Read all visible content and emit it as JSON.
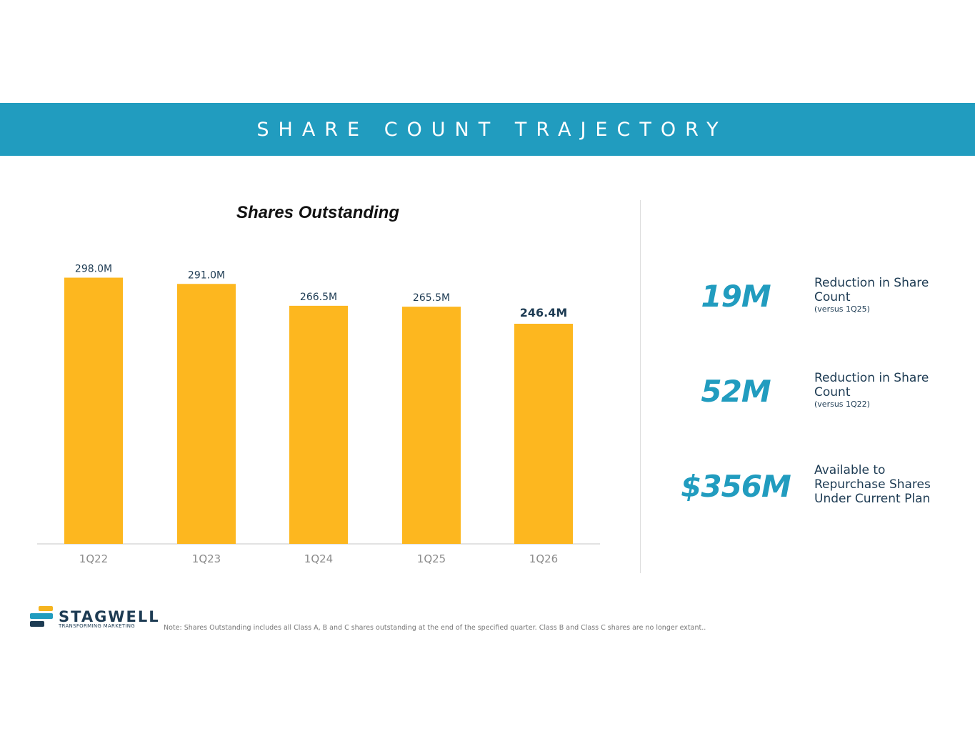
{
  "header": {
    "title": "SHARE COUNT TRAJECTORY"
  },
  "chart_data": {
    "type": "bar",
    "title": "Shares Outstanding",
    "categories": [
      "1Q22",
      "1Q23",
      "1Q24",
      "1Q25",
      "1Q26"
    ],
    "values": [
      298.0,
      291.0,
      266.5,
      265.5,
      246.4
    ],
    "data_labels": [
      "298.0M",
      "291.0M",
      "266.5M",
      "265.5M",
      "246.4M"
    ],
    "unit": "M",
    "ylim": [
      0,
      300
    ],
    "grid": false,
    "bar_color": "#fdb71f",
    "highlight_label_index": 4
  },
  "stats": [
    {
      "value": "19M",
      "label": "Reduction in Share Count",
      "sub": "(versus 1Q25)"
    },
    {
      "value": "52M",
      "label": "Reduction in Share Count",
      "sub": "(versus 1Q22)"
    },
    {
      "value": "$356M",
      "label": "Available to Repurchase Shares Under Current Plan",
      "sub": ""
    }
  ],
  "footer": {
    "logo_text": "STAGWELL",
    "logo_tagline": "TRANSFORMING MARKETING",
    "note": "Note: Shares Outstanding includes all Class A, B and C shares outstanding at the end of the specified quarter. Class B and Class C shares are no longer extant.."
  },
  "colors": {
    "accent": "#219cbf",
    "navy": "#1d3b53",
    "bar": "#fdb71f",
    "logo_gold": "#f5b41f"
  }
}
